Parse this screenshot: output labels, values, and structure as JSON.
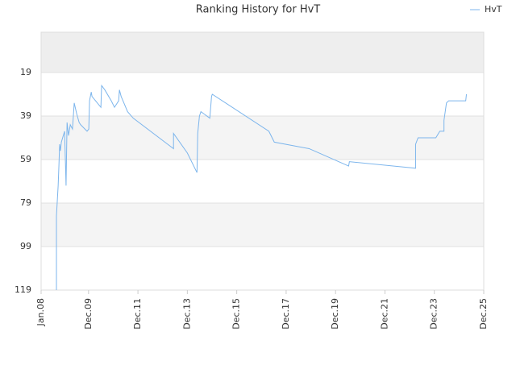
{
  "chart_data": {
    "type": "line",
    "title": "Ranking History for HvT",
    "series": [
      {
        "name": "HvT",
        "color": "#7cb5ec",
        "x": [
          2008.62,
          2008.62,
          2008.69,
          2008.72,
          2008.75,
          2008.78,
          2008.82,
          2008.95,
          2009.01,
          2009.05,
          2009.11,
          2009.18,
          2009.27,
          2009.34,
          2009.44,
          2009.54,
          2009.6,
          2009.86,
          2009.93,
          2009.96,
          2010.03,
          2010.06,
          2010.42,
          2010.45,
          2010.58,
          2010.84,
          2010.97,
          2011.14,
          2011.17,
          2011.24,
          2011.5,
          2011.73,
          2013.36,
          2013.36,
          2013.92,
          2014.31,
          2014.34,
          2014.41,
          2014.47,
          2014.83,
          2014.9,
          2014.93,
          2017.22,
          2017.44,
          2018.85,
          2020.45,
          2020.48,
          2023.16,
          2023.16,
          2023.26,
          2023.98,
          2024.14,
          2024.31,
          2024.31,
          2024.41,
          2024.5,
          2025.19,
          2025.22
        ],
        "values": [
          119,
          85,
          71,
          62,
          52,
          55,
          51,
          46,
          71,
          42,
          48,
          43,
          45,
          33,
          38,
          42,
          43,
          46,
          45,
          32,
          28,
          30,
          35,
          25,
          27,
          32,
          35,
          32,
          27,
          30,
          37,
          40,
          54,
          47,
          56,
          65,
          47,
          39,
          37,
          40,
          30,
          29,
          46,
          51,
          54,
          62,
          60,
          63,
          52,
          49,
          49,
          46,
          46,
          41,
          33,
          32,
          32,
          29
        ]
      }
    ],
    "xlim": [
      2008.0,
      2025.92
    ],
    "xticks": [
      {
        "value": 2008.0,
        "label": "Jan.08"
      },
      {
        "value": 2009.92,
        "label": "Dec.09"
      },
      {
        "value": 2011.92,
        "label": "Dec.11"
      },
      {
        "value": 2013.92,
        "label": "Dec.13"
      },
      {
        "value": 2015.92,
        "label": "Dec.15"
      },
      {
        "value": 2017.92,
        "label": "Dec.17"
      },
      {
        "value": 2019.92,
        "label": "Dec.19"
      },
      {
        "value": 2021.92,
        "label": "Dec.21"
      },
      {
        "value": 2023.92,
        "label": "Dec.23"
      },
      {
        "value": 2025.92,
        "label": "Dec.25"
      }
    ],
    "ylim": [
      119,
      0.5
    ],
    "yticks": [
      19,
      39,
      59,
      79,
      99,
      119
    ],
    "legend": "top-right"
  }
}
